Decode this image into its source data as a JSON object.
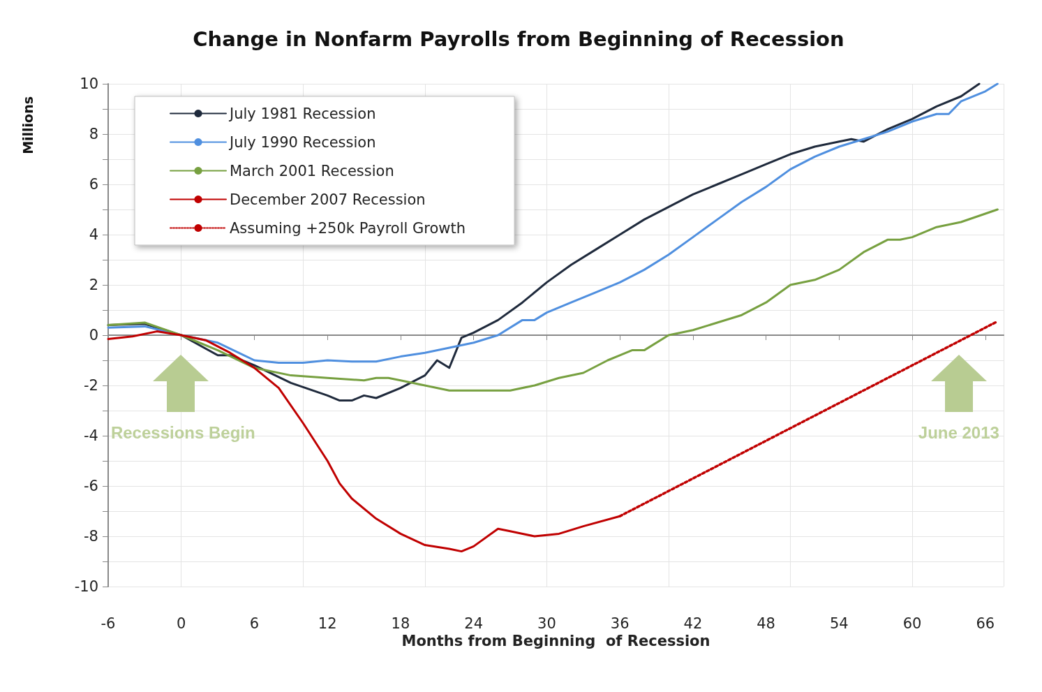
{
  "chart_data": {
    "type": "line",
    "title": "Change in Nonfarm Payrolls from Beginning of Recession",
    "xlabel": "Months from Beginning  of Recession",
    "ylabel": "Millions",
    "xlim": [
      -6,
      67.5
    ],
    "xticks": [
      -6,
      0,
      6,
      12,
      18,
      24,
      30,
      36,
      42,
      48,
      54,
      60,
      66
    ],
    "ylim": [
      -10,
      10
    ],
    "yticks": [
      -10,
      -8,
      -6,
      -4,
      -2,
      0,
      2,
      4,
      6,
      8,
      10
    ],
    "grid": true,
    "legend": "top left",
    "marker": "none",
    "line_style": "solid",
    "series": [
      {
        "name": "July 1981 Recession",
        "color": "#1f2a3c",
        "x": [
          -6,
          -3,
          0,
          3,
          4,
          6,
          9,
          12,
          13,
          14,
          15,
          16,
          18,
          20,
          21,
          22,
          23,
          24,
          26,
          28,
          30,
          32,
          34,
          36,
          38,
          40,
          42,
          44,
          46,
          48,
          50,
          52,
          54,
          55,
          56,
          58,
          60,
          62,
          64,
          65.5
        ],
        "values": [
          0.4,
          0.45,
          0,
          -0.8,
          -0.8,
          -1.2,
          -1.9,
          -2.4,
          -2.6,
          -2.6,
          -2.4,
          -2.5,
          -2.1,
          -1.6,
          -1.0,
          -1.3,
          -0.1,
          0.1,
          0.6,
          1.3,
          2.1,
          2.8,
          3.4,
          4.0,
          4.6,
          5.1,
          5.6,
          6.0,
          6.4,
          6.8,
          7.2,
          7.5,
          7.7,
          7.8,
          7.7,
          8.2,
          8.6,
          9.1,
          9.5,
          10.0
        ]
      },
      {
        "name": "July 1990 Recession",
        "color": "#4f8fdf",
        "x": [
          -6,
          -3,
          0,
          3,
          6,
          8,
          10,
          12,
          14,
          16,
          18,
          20,
          22,
          24,
          26,
          28,
          29,
          30,
          32,
          34,
          36,
          38,
          40,
          42,
          44,
          46,
          48,
          50,
          52,
          54,
          56,
          58,
          60,
          62,
          63,
          64,
          66,
          67
        ],
        "values": [
          0.3,
          0.35,
          0,
          -0.3,
          -1.0,
          -1.1,
          -1.1,
          -1.0,
          -1.05,
          -1.05,
          -0.85,
          -0.7,
          -0.5,
          -0.3,
          0,
          0.6,
          0.6,
          0.9,
          1.3,
          1.7,
          2.1,
          2.6,
          3.2,
          3.9,
          4.6,
          5.3,
          5.9,
          6.6,
          7.1,
          7.5,
          7.8,
          8.1,
          8.5,
          8.8,
          8.8,
          9.3,
          9.7,
          10.0
        ]
      },
      {
        "name": "March 2001 Recession",
        "color": "#77a040",
        "x": [
          -6,
          -3,
          0,
          3,
          6,
          9,
          12,
          15,
          16,
          17,
          18,
          20,
          22,
          24,
          27,
          29,
          31,
          33,
          35,
          37,
          38,
          40,
          42,
          44,
          46,
          48,
          50,
          52,
          54,
          56,
          58,
          59,
          60,
          62,
          64,
          67
        ],
        "values": [
          0.4,
          0.5,
          0,
          -0.6,
          -1.3,
          -1.6,
          -1.7,
          -1.8,
          -1.7,
          -1.7,
          -1.8,
          -2.0,
          -2.2,
          -2.2,
          -2.2,
          -2.0,
          -1.7,
          -1.5,
          -1.0,
          -0.6,
          -0.6,
          0.0,
          0.2,
          0.5,
          0.8,
          1.3,
          2.0,
          2.2,
          2.6,
          3.3,
          3.8,
          3.8,
          3.9,
          4.3,
          4.5,
          5.0
        ]
      },
      {
        "name": "December 2007 Recession",
        "color": "#c00000",
        "x": [
          -6,
          -4,
          -2,
          0,
          2,
          4,
          6,
          8,
          10,
          12,
          13,
          14,
          16,
          18,
          20,
          22,
          23,
          24,
          26,
          27,
          29,
          31,
          33,
          36
        ],
        "values": [
          -0.15,
          -0.05,
          0.15,
          0,
          -0.2,
          -0.7,
          -1.3,
          -2.1,
          -3.5,
          -5.0,
          -5.9,
          -6.5,
          -7.3,
          -7.9,
          -8.35,
          -8.5,
          -8.6,
          -8.4,
          -7.7,
          -7.8,
          -8.0,
          -7.9,
          -7.6,
          -7.2
        ]
      },
      {
        "name": "Assuming +250k Payroll Growth",
        "color": "#c00000",
        "line_style": "dotted",
        "x": [
          36,
          67
        ],
        "values": [
          -7.2,
          0.55
        ]
      }
    ],
    "annotations": [
      "Recessions Begin",
      "June 2013"
    ]
  }
}
